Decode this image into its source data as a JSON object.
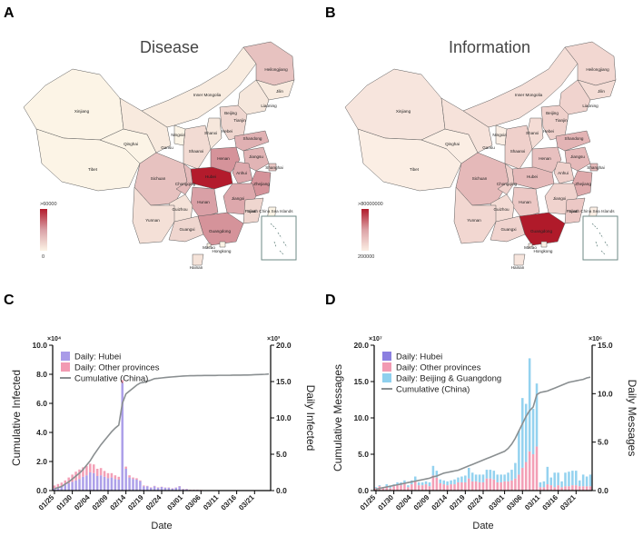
{
  "panels": {
    "a": "A",
    "b": "B",
    "c": "C",
    "d": "D"
  },
  "map_a": {
    "title": "Disease",
    "scale_max": ">60000",
    "scale_min": "0",
    "inset_label": "South China Sea Islands",
    "colors": {
      "low": "#fcf4e6",
      "mid": "#d9a0a6",
      "high": "#b31b2c"
    }
  },
  "map_b": {
    "title": "Information",
    "scale_max": ">80000000",
    "scale_min": "200000",
    "inset_label": "South China Sea Islands",
    "colors": {
      "low": "#fbeee4",
      "mid": "#dca2a6",
      "high": "#b01a2a"
    }
  },
  "province_labels": [
    "Xinjiang",
    "Tibet",
    "Qinghai",
    "Gansu",
    "Inner Mongolia",
    "Heilongjiang",
    "Jilin",
    "Liaoning",
    "Beijing",
    "Tianjin",
    "Hebei",
    "Shanxi",
    "Shaanxi",
    "Ningxia",
    "Shandong",
    "Henan",
    "Jiangsu",
    "Anhui",
    "Shanghai",
    "Hubei",
    "Sichuan",
    "Chongqing",
    "Zhejiang",
    "Hunan",
    "Jiangxi",
    "Guizhou",
    "Fujian",
    "Yunnan",
    "Guangxi",
    "Guangdong",
    "Taiwan",
    "Macao",
    "Hongkong",
    "Hainan"
  ],
  "chart_data": [
    {
      "type": "bar",
      "panel": "C",
      "xlabel": "Date",
      "ylabel_left": "Cumulative Infected",
      "ylabel_right": "Daily Infected",
      "left_multiplier": "×10⁴",
      "right_multiplier": "×10³",
      "ylim_left": [
        0,
        10
      ],
      "ylim_right": [
        0,
        20
      ],
      "left_ticks": [
        "0.0",
        "2.0",
        "4.0",
        "6.0",
        "8.0",
        "10.0"
      ],
      "right_ticks": [
        "0.0",
        "5.0",
        "10.0",
        "15.0",
        "20.0"
      ],
      "x_ticks": [
        "01/25",
        "01/30",
        "02/04",
        "02/09",
        "02/14",
        "02/19",
        "02/24",
        "03/01",
        "03/06",
        "03/11",
        "03/16",
        "03/21"
      ],
      "legend": [
        "Daily: Hubei",
        "Daily: Other provinces",
        "Cumulative (China)"
      ],
      "legend_position": "top-left",
      "colors": {
        "hubei": "#a99be8",
        "other": "#f29ab2",
        "cumulative": "#8a8f91"
      },
      "dates": [
        "01/25",
        "01/26",
        "01/27",
        "01/28",
        "01/29",
        "01/30",
        "01/31",
        "02/01",
        "02/02",
        "02/03",
        "02/04",
        "02/05",
        "02/06",
        "02/07",
        "02/08",
        "02/09",
        "02/10",
        "02/11",
        "02/12",
        "02/13",
        "02/14",
        "02/15",
        "02/16",
        "02/17",
        "02/18",
        "02/19",
        "02/20",
        "02/21",
        "02/22",
        "02/23",
        "02/24",
        "02/25",
        "02/26",
        "02/27",
        "02/28",
        "02/29",
        "03/01",
        "03/02",
        "03/03",
        "03/04",
        "03/05",
        "03/06",
        "03/07",
        "03/08",
        "03/09",
        "03/10",
        "03/11",
        "03/12",
        "03/13",
        "03/14",
        "03/15",
        "03/16",
        "03/17",
        "03/18",
        "03/19",
        "03/20",
        "03/21",
        "03/22",
        "03/23",
        "03/24",
        "03/25"
      ],
      "series": [
        {
          "name": "Daily: Hubei",
          "values": [
            0.3,
            0.4,
            0.6,
            0.8,
            1.0,
            1.2,
            1.4,
            1.6,
            1.9,
            2.1,
            2.5,
            2.4,
            2.0,
            2.1,
            1.9,
            1.7,
            1.8,
            1.6,
            1.5,
            14.8,
            3.0,
            1.8,
            1.6,
            1.5,
            1.3,
            0.6,
            0.6,
            0.4,
            0.6,
            0.4,
            0.5,
            0.4,
            0.4,
            0.3,
            0.4,
            0.6,
            0.2,
            0.2,
            0.1,
            0.1,
            0.1,
            0.07,
            0.04,
            0.04,
            0.02,
            0.02,
            0.01,
            0.01,
            0.01,
            0.0,
            0.0,
            0.0,
            0.0,
            0.0,
            0.0,
            0.0,
            0.0,
            0.0,
            0.0,
            0.0,
            0.0
          ]
        },
        {
          "name": "Daily: Other provinces",
          "values": [
            0.4,
            0.5,
            0.5,
            0.6,
            0.8,
            1.0,
            1.2,
            1.3,
            1.3,
            1.3,
            1.2,
            1.2,
            1.0,
            1.0,
            0.8,
            0.7,
            0.6,
            0.5,
            0.4,
            0.4,
            0.3,
            0.3,
            0.2,
            0.2,
            0.1,
            0.1,
            0.05,
            0.05,
            0.05,
            0.05,
            0.03,
            0.03,
            0.02,
            0.02,
            0.02,
            0.02,
            0.02,
            0.02,
            0.02,
            0.02,
            0.02,
            0.02,
            0.02,
            0.02,
            0.02,
            0.02,
            0.02,
            0.03,
            0.03,
            0.03,
            0.03,
            0.04,
            0.04,
            0.05,
            0.06,
            0.06,
            0.05,
            0.05,
            0.05,
            0.05,
            0.05
          ]
        },
        {
          "name": "Cumulative (China)",
          "values": [
            0.13,
            0.2,
            0.28,
            0.45,
            0.6,
            0.8,
            1.0,
            1.2,
            1.45,
            1.75,
            2.05,
            2.45,
            2.8,
            3.15,
            3.45,
            3.75,
            4.05,
            4.3,
            4.5,
            6.0,
            6.65,
            6.85,
            7.05,
            7.25,
            7.4,
            7.45,
            7.52,
            7.6,
            7.7,
            7.72,
            7.75,
            7.78,
            7.8,
            7.82,
            7.84,
            7.86,
            7.88,
            7.89,
            7.9,
            7.9,
            7.91,
            7.91,
            7.92,
            7.92,
            7.92,
            7.92,
            7.93,
            7.93,
            7.93,
            7.93,
            7.94,
            7.94,
            7.94,
            7.95,
            7.95,
            7.96,
            7.97,
            7.98,
            7.99,
            8.0,
            8.02
          ]
        }
      ]
    },
    {
      "type": "bar",
      "panel": "D",
      "xlabel": "Date",
      "ylabel_left": "Cumulative Messages",
      "ylabel_right": "Daily Messages",
      "left_multiplier": "×10⁷",
      "right_multiplier": "×10⁶",
      "ylim_left": [
        0,
        20
      ],
      "ylim_right": [
        0,
        15
      ],
      "left_ticks": [
        "0.0",
        "5.0",
        "10.0",
        "15.0",
        "20.0"
      ],
      "right_ticks": [
        "0.0",
        "5.0",
        "10.0",
        "15.0"
      ],
      "x_ticks": [
        "01/25",
        "01/30",
        "02/04",
        "02/09",
        "02/14",
        "02/19",
        "02/24",
        "03/01",
        "03/06",
        "03/11",
        "03/16",
        "03/21"
      ],
      "legend": [
        "Daily: Hubei",
        "Daily: Other provinces",
        "Daily: Beijing & Guangdong",
        "Cumulative (China)"
      ],
      "legend_position": "top-left",
      "colors": {
        "hubei": "#8b7fe0",
        "other": "#f29ab2",
        "bjgd": "#8ed0ee",
        "cumulative": "#8a8f91"
      },
      "dates": [
        "01/25",
        "01/26",
        "01/27",
        "01/28",
        "01/29",
        "01/30",
        "01/31",
        "02/01",
        "02/02",
        "02/03",
        "02/04",
        "02/05",
        "02/06",
        "02/07",
        "02/08",
        "02/09",
        "02/10",
        "02/11",
        "02/12",
        "02/13",
        "02/14",
        "02/15",
        "02/16",
        "02/17",
        "02/18",
        "02/19",
        "02/20",
        "02/21",
        "02/22",
        "02/23",
        "02/24",
        "02/25",
        "02/26",
        "02/27",
        "02/28",
        "02/29",
        "03/01",
        "03/02",
        "03/03",
        "03/04",
        "03/05",
        "03/06",
        "03/07",
        "03/08",
        "03/09",
        "03/10",
        "03/11",
        "03/12",
        "03/13",
        "03/14",
        "03/15",
        "03/16",
        "03/17",
        "03/18",
        "03/19",
        "03/20",
        "03/21",
        "03/22",
        "03/23",
        "03/24",
        "03/25"
      ],
      "series": [
        {
          "name": "Daily: Hubei",
          "values": [
            0.05,
            0.05,
            0.05,
            0.05,
            0.05,
            0.05,
            0.05,
            0.05,
            0.05,
            0.05,
            0.05,
            0.05,
            0.05,
            0.05,
            0.05,
            0.05,
            0.05,
            0.05,
            0.05,
            0.05,
            0.05,
            0.05,
            0.05,
            0.05,
            0.05,
            0.05,
            0.05,
            0.05,
            0.05,
            0.05,
            0.05,
            0.05,
            0.05,
            0.05,
            0.05,
            0.05,
            0.05,
            0.05,
            0.05,
            0.05,
            0.05,
            0.05,
            0.05,
            0.05,
            0.05,
            0.05,
            0.05,
            0.05,
            0.05,
            0.05,
            0.05,
            0.05,
            0.05,
            0.05,
            0.05,
            0.05,
            0.05,
            0.05,
            0.05,
            0.05,
            0.05
          ]
        },
        {
          "name": "Daily: Other provinces",
          "values": [
            0.2,
            0.4,
            0.2,
            0.4,
            0.2,
            0.4,
            0.5,
            0.5,
            0.7,
            0.3,
            0.6,
            0.9,
            0.5,
            0.5,
            0.6,
            0.4,
            1.5,
            1.3,
            0.7,
            0.6,
            0.5,
            0.6,
            0.6,
            0.8,
            0.8,
            0.8,
            1.2,
            0.9,
            0.9,
            0.8,
            0.8,
            1.2,
            1.2,
            1.1,
            0.8,
            0.8,
            0.9,
            0.9,
            1.0,
            1.2,
            1.6,
            2.3,
            2.9,
            4.0,
            3.7,
            4.5,
            0.3,
            0.3,
            0.6,
            0.5,
            0.3,
            0.5,
            0.3,
            0.4,
            0.4,
            0.5,
            0.5,
            0.4,
            0.4,
            0.4,
            0.4
          ]
        },
        {
          "name": "Daily: Beijing & Guangdong",
          "values": [
            0.1,
            0.1,
            0.1,
            0.2,
            0.2,
            0.2,
            0.3,
            0.3,
            0.3,
            0.2,
            0.4,
            0.5,
            0.3,
            0.3,
            0.3,
            0.4,
            1.0,
            0.7,
            0.4,
            0.4,
            0.4,
            0.4,
            0.5,
            0.5,
            0.6,
            0.7,
            1.1,
            0.9,
            0.7,
            0.8,
            0.8,
            0.9,
            0.9,
            0.9,
            0.8,
            0.8,
            0.7,
            0.9,
            1.1,
            1.6,
            4.5,
            7.2,
            6.0,
            9.6,
            4.7,
            6.5,
            0.5,
            0.6,
            1.8,
            0.8,
            1.5,
            1.3,
            0.6,
            1.4,
            1.5,
            1.5,
            1.5,
            0.6,
            1.2,
            1.0,
            1.2
          ]
        },
        {
          "name": "Cumulative (China)",
          "values": [
            0.2,
            0.3,
            0.4,
            0.5,
            0.6,
            0.7,
            0.8,
            0.9,
            1.0,
            1.1,
            1.2,
            1.3,
            1.4,
            1.5,
            1.6,
            1.7,
            1.9,
            2.0,
            2.2,
            2.4,
            2.5,
            2.6,
            2.7,
            2.8,
            3.0,
            3.2,
            3.4,
            3.6,
            3.8,
            4.0,
            4.2,
            4.4,
            4.6,
            4.8,
            5.0,
            5.2,
            5.4,
            5.8,
            6.4,
            7.2,
            8.2,
            9.2,
            10.2,
            11.0,
            11.5,
            13.2,
            13.5,
            13.6,
            13.7,
            13.9,
            14.1,
            14.3,
            14.5,
            14.7,
            14.9,
            15.0,
            15.1,
            15.2,
            15.3,
            15.5,
            15.6
          ]
        }
      ]
    }
  ]
}
